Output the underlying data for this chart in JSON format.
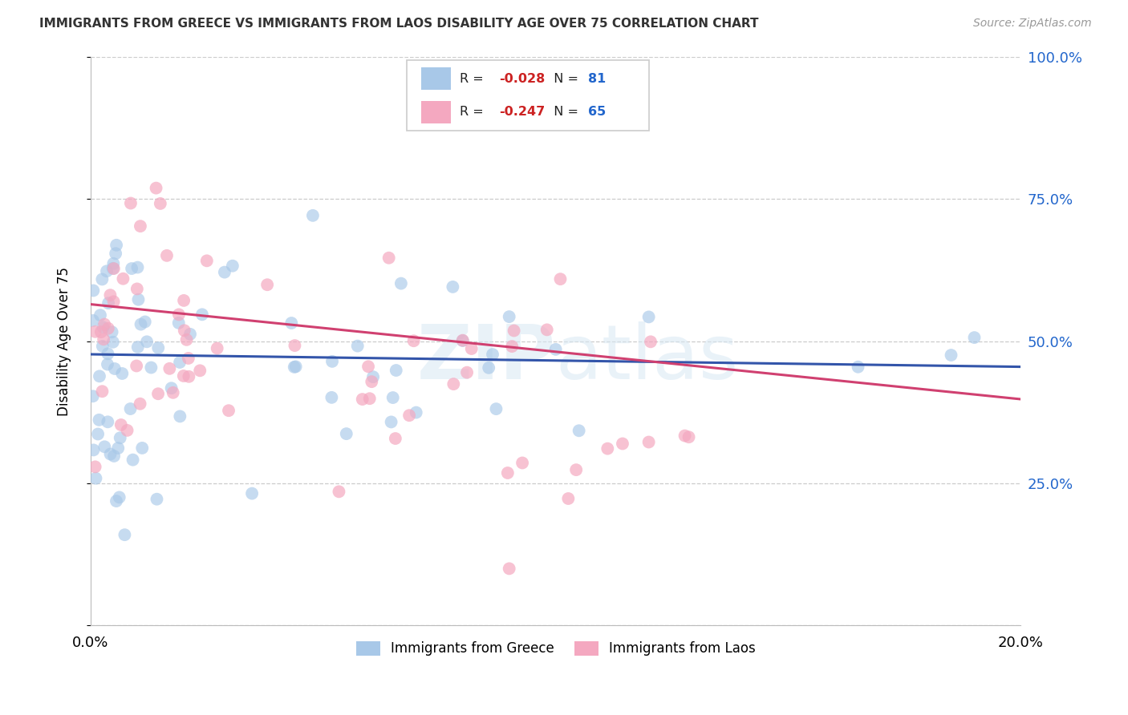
{
  "title": "IMMIGRANTS FROM GREECE VS IMMIGRANTS FROM LAOS DISABILITY AGE OVER 75 CORRELATION CHART",
  "source": "Source: ZipAtlas.com",
  "ylabel": "Disability Age Over 75",
  "xlim": [
    0.0,
    0.2
  ],
  "ylim": [
    0.0,
    1.0
  ],
  "greece_color": "#a8c8e8",
  "laos_color": "#f4a8c0",
  "greece_line_color": "#3355aa",
  "laos_line_color": "#d04070",
  "greece_R": -0.028,
  "greece_N": 81,
  "laos_R": -0.247,
  "laos_N": 65,
  "watermark": "ZIPatlas",
  "legend_R_color": "#cc2222",
  "legend_N_color": "#2266cc",
  "background_color": "#ffffff",
  "grid_color": "#cccccc"
}
